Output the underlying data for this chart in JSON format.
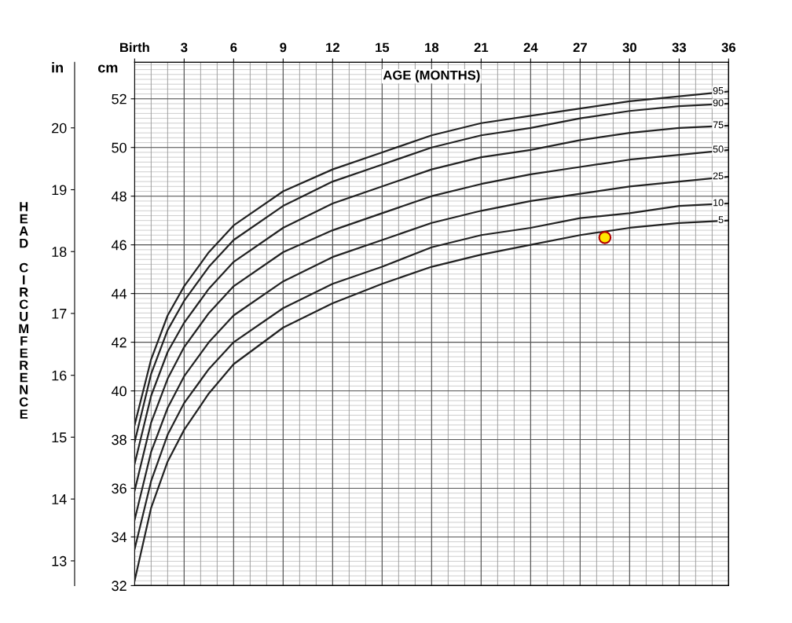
{
  "chart_data": {
    "type": "line",
    "xlabel": "AGE (MONTHS)",
    "ylabel": "cm",
    "y2label": "in",
    "annotations": [
      "HEAD CIRCUMFERENCE"
    ],
    "x": [
      0,
      1,
      2,
      3,
      4.5,
      6,
      9,
      12,
      15,
      18,
      21,
      24,
      27,
      30,
      33,
      36
    ],
    "series": [
      {
        "name": "95",
        "color": "#222222",
        "values": [
          38.6,
          41.3,
          43.1,
          44.3,
          45.7,
          46.8,
          48.2,
          49.1,
          49.8,
          50.5,
          51.0,
          51.3,
          51.6,
          51.9,
          52.1,
          52.3
        ]
      },
      {
        "name": "90",
        "color": "#222222",
        "values": [
          37.9,
          40.7,
          42.5,
          43.7,
          45.1,
          46.2,
          47.6,
          48.6,
          49.3,
          50.0,
          50.5,
          50.8,
          51.2,
          51.5,
          51.7,
          51.8
        ]
      },
      {
        "name": "75",
        "color": "#222222",
        "values": [
          37.0,
          39.8,
          41.6,
          42.8,
          44.2,
          45.3,
          46.7,
          47.7,
          48.4,
          49.1,
          49.6,
          49.9,
          50.3,
          50.6,
          50.8,
          50.9
        ]
      },
      {
        "name": "50",
        "color": "#222222",
        "values": [
          35.9,
          38.7,
          40.5,
          41.8,
          43.2,
          44.3,
          45.7,
          46.6,
          47.3,
          48.0,
          48.5,
          48.9,
          49.2,
          49.5,
          49.7,
          49.9
        ]
      },
      {
        "name": "25",
        "color": "#222222",
        "values": [
          34.7,
          37.5,
          39.3,
          40.6,
          42.0,
          43.1,
          44.5,
          45.5,
          46.2,
          46.9,
          47.4,
          47.8,
          48.1,
          48.4,
          48.6,
          48.8
        ]
      },
      {
        "name": "10",
        "color": "#222222",
        "values": [
          33.5,
          36.3,
          38.2,
          39.5,
          40.9,
          42.0,
          43.4,
          44.4,
          45.1,
          45.9,
          46.4,
          46.7,
          47.1,
          47.3,
          47.6,
          47.7
        ]
      },
      {
        "name": "5",
        "color": "#222222",
        "values": [
          32.2,
          35.2,
          37.1,
          38.4,
          39.9,
          41.1,
          42.6,
          43.6,
          44.4,
          45.1,
          45.6,
          46.0,
          46.4,
          46.7,
          46.9,
          47.0
        ]
      },
      {
        "type": "scatter",
        "marker": "circle",
        "x": [
          28.5
        ],
        "color": "#ffe600",
        "values": [
          46.3
        ]
      }
    ],
    "xlim": [
      0,
      36
    ],
    "xticks": [
      {
        "value": 0,
        "label": "Birth"
      },
      3,
      6,
      9,
      12,
      15,
      18,
      21,
      24,
      27,
      30,
      33,
      36
    ],
    "ylim": [
      32,
      53.5
    ],
    "yticks": [
      32,
      34,
      36,
      38,
      40,
      42,
      44,
      46,
      48,
      50,
      52
    ],
    "y2lim": [
      12.6,
      21.06
    ],
    "y2ticks": [
      13,
      14,
      15,
      16,
      17,
      18,
      19,
      20
    ],
    "grid": true,
    "marker": "none",
    "line_style": "solid"
  }
}
